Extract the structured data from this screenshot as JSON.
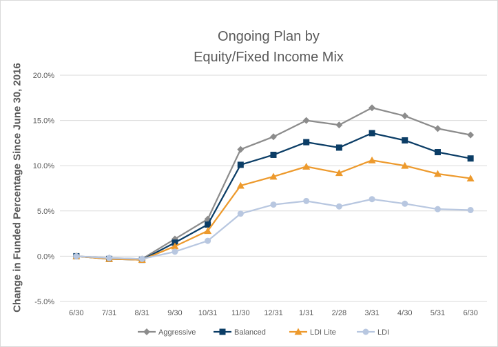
{
  "chart_data": {
    "type": "line",
    "title_line1": "Ongoing Plan by",
    "title_line2": "Equity/Fixed Income Mix",
    "ylabel": "Change in Funded Percentage Since June 30, 2016",
    "xlabel": "",
    "categories": [
      "6/30",
      "7/31",
      "8/31",
      "9/30",
      "10/31",
      "11/30",
      "12/31",
      "1/31",
      "2/28",
      "3/31",
      "4/30",
      "5/31",
      "6/30"
    ],
    "ylim": [
      -5.0,
      20.0
    ],
    "yticks": [
      -5.0,
      0.0,
      5.0,
      10.0,
      15.0,
      20.0
    ],
    "ytick_labels": [
      "-5.0%",
      "0.0%",
      "5.0%",
      "10.0%",
      "15.0%",
      "20.0%"
    ],
    "grid": true,
    "legend_position": "bottom",
    "series": [
      {
        "name": "Aggressive",
        "color": "#8c8c8c",
        "marker": "diamond",
        "values": [
          0.0,
          -0.2,
          -0.3,
          1.9,
          4.1,
          11.8,
          13.2,
          15.0,
          14.5,
          16.4,
          15.5,
          14.1,
          13.4
        ]
      },
      {
        "name": "Balanced",
        "color": "#0b3d66",
        "marker": "square",
        "values": [
          0.0,
          -0.3,
          -0.4,
          1.5,
          3.5,
          10.1,
          11.2,
          12.6,
          12.0,
          13.6,
          12.8,
          11.5,
          10.8
        ]
      },
      {
        "name": "LDI Lite",
        "color": "#ed9a2d",
        "marker": "triangle",
        "values": [
          0.0,
          -0.3,
          -0.4,
          1.1,
          2.8,
          7.8,
          8.8,
          9.9,
          9.2,
          10.6,
          10.0,
          9.1,
          8.6
        ]
      },
      {
        "name": "LDI",
        "color": "#b8c7e0",
        "marker": "circle",
        "values": [
          0.0,
          -0.2,
          -0.3,
          0.5,
          1.7,
          4.7,
          5.7,
          6.1,
          5.5,
          6.3,
          5.8,
          5.2,
          5.1
        ]
      }
    ]
  }
}
